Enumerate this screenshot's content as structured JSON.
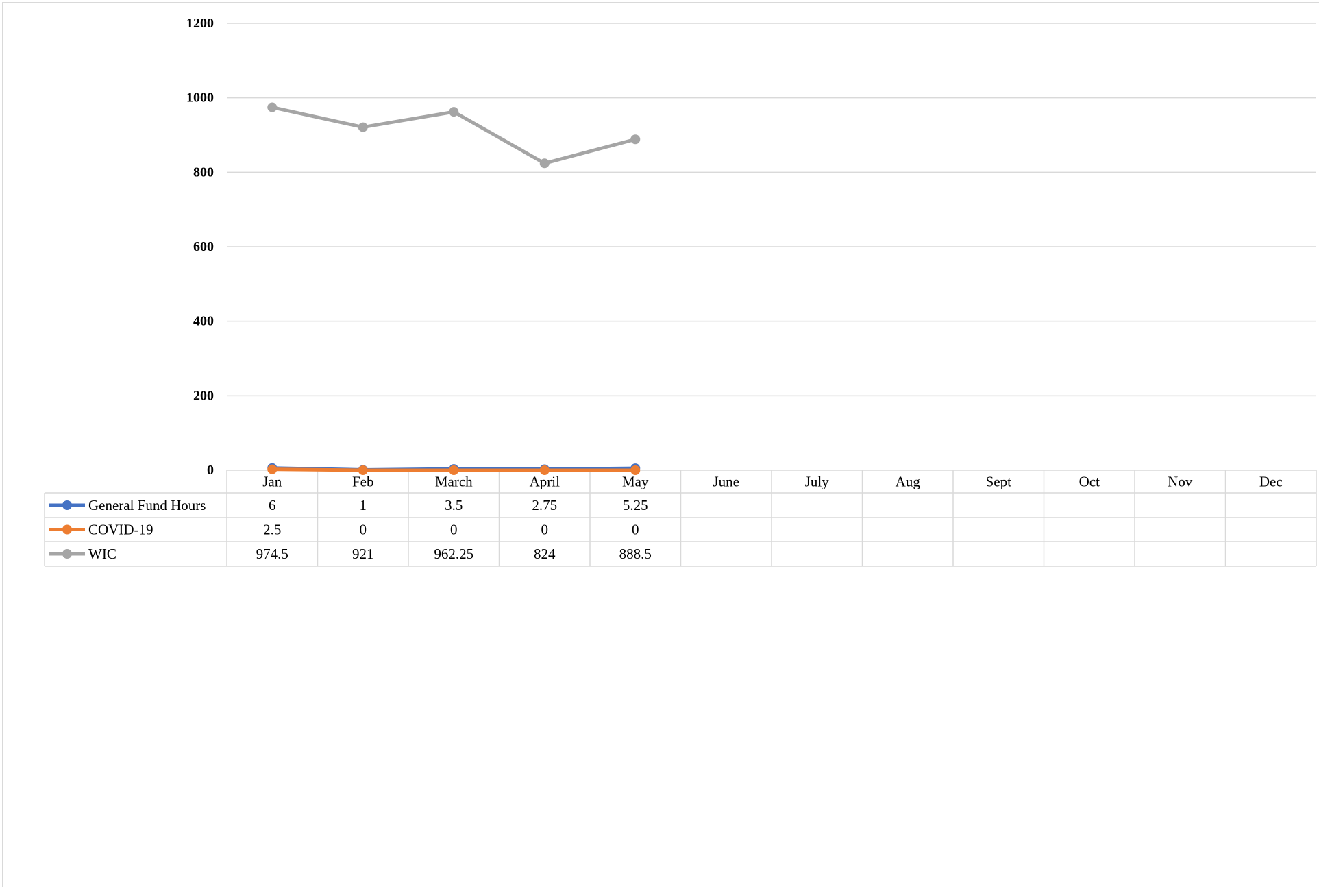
{
  "chart_data": {
    "type": "line",
    "categories": [
      "Jan",
      "Feb",
      "March",
      "April",
      "May",
      "June",
      "July",
      "Aug",
      "Sept",
      "Oct",
      "Nov",
      "Dec"
    ],
    "series": [
      {
        "name": "General Fund Hours",
        "color": "#4472c4",
        "values": [
          6,
          1,
          3.5,
          2.75,
          5.25,
          null,
          null,
          null,
          null,
          null,
          null,
          null
        ]
      },
      {
        "name": "COVID-19",
        "color": "#ed7d31",
        "values": [
          2.5,
          0,
          0,
          0,
          0,
          null,
          null,
          null,
          null,
          null,
          null,
          null
        ]
      },
      {
        "name": "WIC",
        "color": "#a5a5a5",
        "values": [
          974.5,
          921,
          962.25,
          824,
          888.5,
          null,
          null,
          null,
          null,
          null,
          null,
          null
        ]
      }
    ],
    "ylim": [
      0,
      1200
    ],
    "yticks": [
      0,
      200,
      400,
      600,
      800,
      1000,
      1200
    ],
    "grid": true,
    "data_table": true
  }
}
